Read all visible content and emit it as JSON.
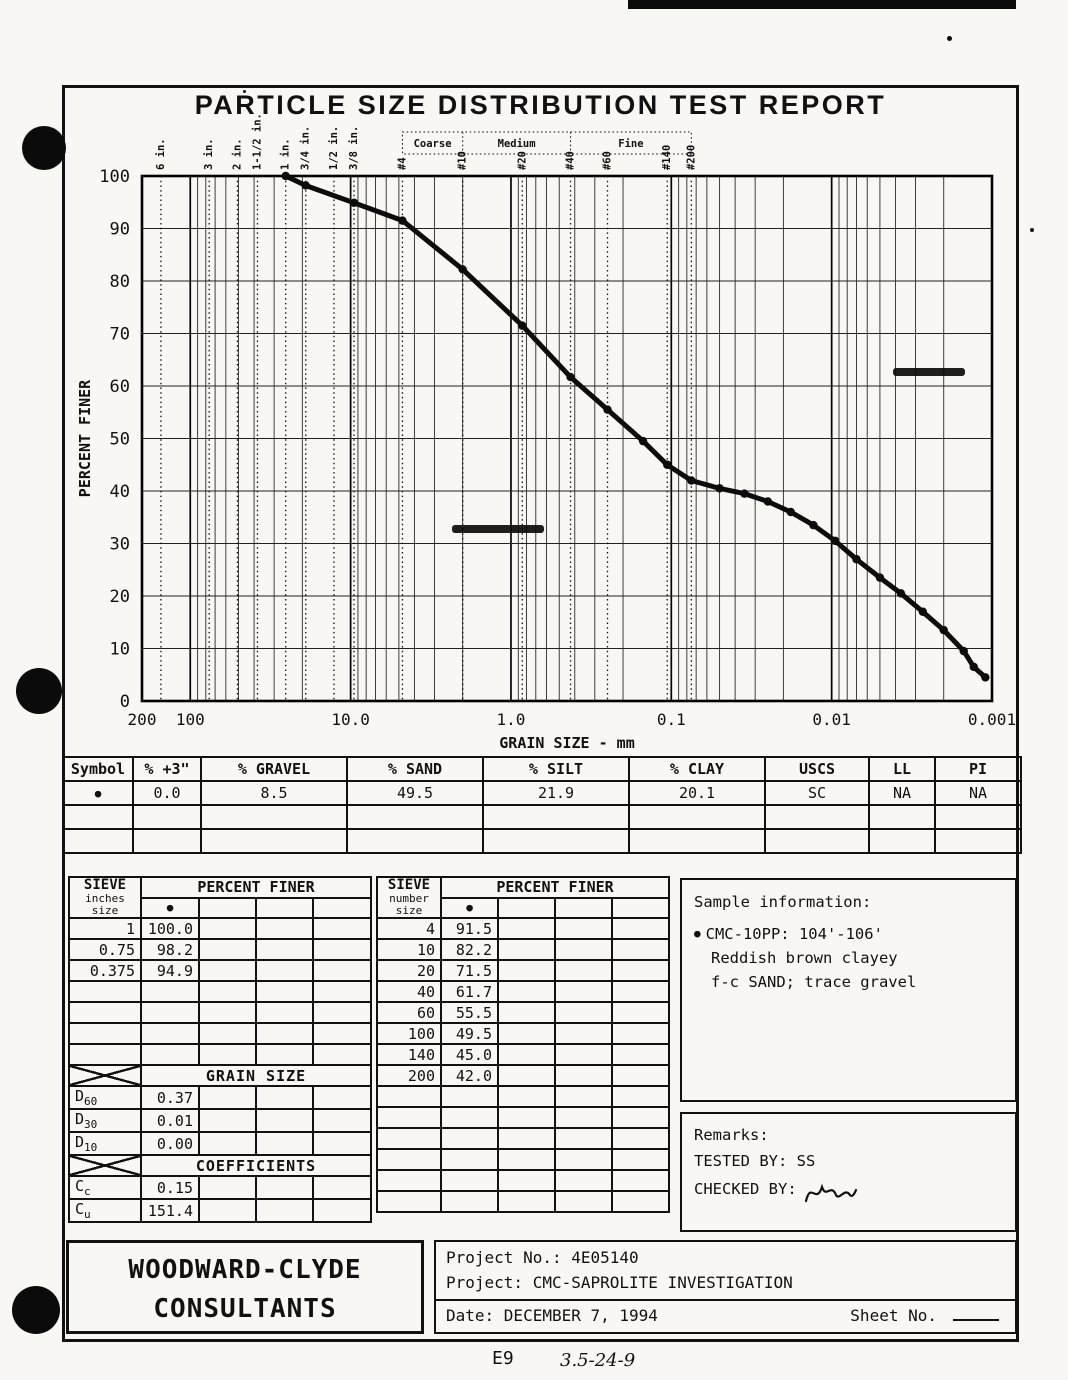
{
  "title": "PARTICLE SIZE DISTRIBUTION TEST REPORT",
  "chart_data": {
    "type": "line",
    "xlabel": "GRAIN SIZE - mm",
    "ylabel": "PERCENT FINER",
    "x_scale": "log",
    "xlim": [
      200,
      0.001
    ],
    "ylim": [
      0,
      100
    ],
    "y_ticks": [
      0,
      10,
      20,
      30,
      40,
      50,
      60,
      70,
      80,
      90,
      100
    ],
    "x_tick_labels": [
      {
        "label": "200",
        "mm": 200
      },
      {
        "label": "100",
        "mm": 100
      },
      {
        "label": "10.0",
        "mm": 10
      },
      {
        "label": "1.0",
        "mm": 1
      },
      {
        "label": "0.1",
        "mm": 0.1
      },
      {
        "label": "0.01",
        "mm": 0.01
      },
      {
        "label": "0.001",
        "mm": 0.001
      }
    ],
    "sieve_inch_labels": [
      {
        "label": "6 in.",
        "mm": 152.4
      },
      {
        "label": "3 in.",
        "mm": 76.2
      },
      {
        "label": "2 in.",
        "mm": 50.8
      },
      {
        "label": "1-1/2 in.",
        "mm": 38.1
      },
      {
        "label": "1 in.",
        "mm": 25.4
      },
      {
        "label": "3/4 in.",
        "mm": 19.05
      },
      {
        "label": "1/2 in.",
        "mm": 12.7
      },
      {
        "label": "3/8 in.",
        "mm": 9.525
      }
    ],
    "sieve_number_labels": [
      {
        "label": "#4",
        "mm": 4.75
      },
      {
        "label": "#10",
        "mm": 2.0
      },
      {
        "label": "#20",
        "mm": 0.85
      },
      {
        "label": "#40",
        "mm": 0.425
      },
      {
        "label": "#60",
        "mm": 0.25
      },
      {
        "label": "#140",
        "mm": 0.106
      },
      {
        "label": "#200",
        "mm": 0.075
      }
    ],
    "sand_divisions": {
      "labels": [
        "Coarse",
        "Medium",
        "Fine"
      ],
      "bounds_mm": [
        4.75,
        2.0,
        0.425,
        0.075
      ]
    },
    "series": [
      {
        "name": "CMC-10PP: 104'-106'",
        "symbol": "●",
        "points_mm_pct": [
          [
            25.4,
            100.0
          ],
          [
            19.05,
            98.2
          ],
          [
            9.525,
            94.9
          ],
          [
            4.75,
            91.5
          ],
          [
            2.0,
            82.2
          ],
          [
            0.85,
            71.5
          ],
          [
            0.425,
            61.7
          ],
          [
            0.25,
            55.5
          ],
          [
            0.15,
            49.5
          ],
          [
            0.106,
            45.0
          ],
          [
            0.075,
            42.0
          ],
          [
            0.05,
            40.5
          ],
          [
            0.035,
            39.5
          ],
          [
            0.025,
            38.0
          ],
          [
            0.018,
            36.0
          ],
          [
            0.013,
            33.5
          ],
          [
            0.0095,
            30.5
          ],
          [
            0.007,
            27.0
          ],
          [
            0.005,
            23.5
          ],
          [
            0.0037,
            20.5
          ],
          [
            0.0027,
            17.0
          ],
          [
            0.002,
            13.5
          ],
          [
            0.0015,
            9.5
          ],
          [
            0.0013,
            6.5
          ],
          [
            0.0011,
            4.5
          ]
        ]
      }
    ]
  },
  "summary_table": {
    "headers": [
      "Symbol",
      "% +3\"",
      "% GRAVEL",
      "% SAND",
      "% SILT",
      "% CLAY",
      "USCS",
      "LL",
      "PI"
    ],
    "rows": [
      [
        "●",
        "0.0",
        "8.5",
        "49.5",
        "21.9",
        "20.1",
        "SC",
        "NA",
        "NA"
      ]
    ]
  },
  "sieve_inches_table": {
    "col1_header": [
      "SIEVE",
      "inches",
      "size"
    ],
    "col2_header": "PERCENT FINER",
    "symbol": "●",
    "rows": [
      [
        "1",
        "100.0"
      ],
      [
        "0.75",
        "98.2"
      ],
      [
        "0.375",
        "94.9"
      ],
      [
        "",
        ""
      ],
      [
        "",
        ""
      ],
      [
        "",
        ""
      ],
      [
        "",
        ""
      ]
    ],
    "grain_size_header": "GRAIN SIZE",
    "grain_rows": [
      {
        "base": "D",
        "sub": "60",
        "value": "0.37"
      },
      {
        "base": "D",
        "sub": "30",
        "value": "0.01"
      },
      {
        "base": "D",
        "sub": "10",
        "value": "0.00"
      }
    ],
    "coefficients_header": "COEFFICIENTS",
    "coeff_rows": [
      {
        "base": "C",
        "sub": "c",
        "value": "0.15"
      },
      {
        "base": "C",
        "sub": "u",
        "value": "151.4"
      }
    ]
  },
  "sieve_number_table": {
    "col1_header": [
      "SIEVE",
      "number",
      "size"
    ],
    "col2_header": "PERCENT FINER",
    "symbol": "●",
    "rows": [
      [
        "4",
        "91.5"
      ],
      [
        "10",
        "82.2"
      ],
      [
        "20",
        "71.5"
      ],
      [
        "40",
        "61.7"
      ],
      [
        "60",
        "55.5"
      ],
      [
        "100",
        "49.5"
      ],
      [
        "140",
        "45.0"
      ],
      [
        "200",
        "42.0"
      ],
      [
        "",
        ""
      ],
      [
        "",
        ""
      ],
      [
        "",
        ""
      ],
      [
        "",
        ""
      ],
      [
        "",
        ""
      ],
      [
        "",
        ""
      ]
    ]
  },
  "sample_info": {
    "heading": "Sample information:",
    "symbol": "●",
    "line1": "CMC-10PP: 104'-106'",
    "line2": "Reddish brown clayey",
    "line3": "f-c SAND; trace gravel"
  },
  "remarks": {
    "heading": "Remarks:",
    "tested_by": "TESTED BY: SS",
    "checked_by": "CHECKED BY:"
  },
  "footer": {
    "company_line1": "WOODWARD-CLYDE",
    "company_line2": "CONSULTANTS",
    "project_no": "Project No.: 4E05140",
    "project": "Project: CMC-SAPROLITE INVESTIGATION",
    "date": "Date: DECEMBER 7, 1994",
    "sheet_no": "Sheet No."
  },
  "bottom_annotations": {
    "left": "E9",
    "right": "3.5-24-9"
  }
}
